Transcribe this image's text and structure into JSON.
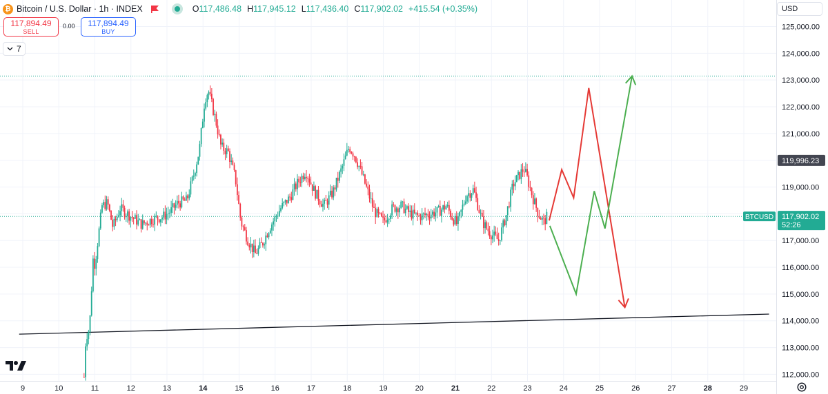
{
  "header": {
    "symbol_title": "Bitcoin / U.S. Dollar · 1h · INDEX",
    "ohlc": [
      {
        "label": "O",
        "value": "117,486.48"
      },
      {
        "label": "H",
        "value": "117,945.12"
      },
      {
        "label": "L",
        "value": "117,436.40"
      },
      {
        "label": "C",
        "value": "117,902.02"
      }
    ],
    "change": "+415.54 (+0.35%)"
  },
  "trading": {
    "sell_price": "117,894.49",
    "sell_label": "SELL",
    "spread": "0.00",
    "buy_price": "117,894.49",
    "buy_label": "BUY"
  },
  "indicator": {
    "label": "7"
  },
  "currency_selector": {
    "value": "USD"
  },
  "icons": [
    "bitcoin-icon",
    "flag-icon",
    "market-status-icon",
    "chevron-icon",
    "tradingview-logo",
    "settings-icon"
  ],
  "colors": {
    "up": "#22ab94",
    "down": "#f23645",
    "arrow_up": "#4caf50",
    "arrow_down": "#e53935",
    "accent": "#2962ff"
  },
  "price_axis": {
    "ticks": [
      "125,000.00",
      "124,000.00",
      "123,000.00",
      "122,000.00",
      "121,000.00",
      "120,000.00",
      "119,000.00",
      "118,000.00",
      "117,000.00",
      "116,000.00",
      "115,000.00",
      "114,000.00",
      "113,000.00",
      "112,000.00"
    ],
    "crosshair_price": "119,996.23",
    "last_symbol": "BTCUSD",
    "last_price": "117,902.02",
    "countdown": "52:26"
  },
  "chart_data": {
    "type": "candlestick",
    "timeframe": "1h",
    "x_ticks": [
      "9",
      "10",
      "11",
      "12",
      "13",
      "14",
      "15",
      "16",
      "17",
      "18",
      "19",
      "20",
      "21",
      "22",
      "23",
      "24",
      "25",
      "26",
      "27",
      "28",
      "29"
    ],
    "ylim": [
      111700,
      125400
    ],
    "dotted_levels": [
      123150,
      117900
    ],
    "support_line": {
      "from": {
        "x": 8.9,
        "y": 113500
      },
      "to": {
        "x": 29.7,
        "y": 114250
      }
    },
    "anchors": [
      {
        "t": 10.7,
        "p": 111900
      },
      {
        "t": 10.75,
        "p": 113400
      },
      {
        "t": 10.85,
        "p": 113700
      },
      {
        "t": 10.95,
        "p": 116300
      },
      {
        "t": 11.0,
        "p": 116100
      },
      {
        "t": 11.1,
        "p": 117200
      },
      {
        "t": 11.2,
        "p": 118300
      },
      {
        "t": 11.35,
        "p": 118400
      },
      {
        "t": 11.5,
        "p": 117500
      },
      {
        "t": 11.7,
        "p": 118200
      },
      {
        "t": 12.0,
        "p": 117900
      },
      {
        "t": 12.3,
        "p": 117600
      },
      {
        "t": 12.6,
        "p": 117800
      },
      {
        "t": 12.9,
        "p": 117900
      },
      {
        "t": 13.1,
        "p": 118100
      },
      {
        "t": 13.3,
        "p": 118400
      },
      {
        "t": 13.55,
        "p": 118500
      },
      {
        "t": 13.75,
        "p": 119500
      },
      {
        "t": 13.9,
        "p": 120400
      },
      {
        "t": 14.05,
        "p": 122300
      },
      {
        "t": 14.15,
        "p": 122600
      },
      {
        "t": 14.35,
        "p": 121500
      },
      {
        "t": 14.5,
        "p": 120500
      },
      {
        "t": 14.7,
        "p": 120300
      },
      {
        "t": 14.9,
        "p": 119300
      },
      {
        "t": 15.05,
        "p": 117700
      },
      {
        "t": 15.25,
        "p": 117000
      },
      {
        "t": 15.45,
        "p": 116500
      },
      {
        "t": 15.65,
        "p": 116900
      },
      {
        "t": 15.85,
        "p": 117500
      },
      {
        "t": 16.15,
        "p": 118200
      },
      {
        "t": 16.4,
        "p": 118600
      },
      {
        "t": 16.6,
        "p": 119100
      },
      {
        "t": 16.85,
        "p": 119600
      },
      {
        "t": 17.1,
        "p": 118800
      },
      {
        "t": 17.35,
        "p": 118300
      },
      {
        "t": 17.6,
        "p": 118800
      },
      {
        "t": 17.85,
        "p": 119700
      },
      {
        "t": 18.05,
        "p": 120500
      },
      {
        "t": 18.2,
        "p": 120200
      },
      {
        "t": 18.35,
        "p": 119700
      },
      {
        "t": 18.55,
        "p": 118900
      },
      {
        "t": 18.75,
        "p": 118100
      },
      {
        "t": 19.0,
        "p": 117700
      },
      {
        "t": 19.25,
        "p": 118200
      },
      {
        "t": 19.5,
        "p": 118300
      },
      {
        "t": 19.75,
        "p": 118000
      },
      {
        "t": 20.0,
        "p": 117900
      },
      {
        "t": 20.3,
        "p": 118000
      },
      {
        "t": 20.55,
        "p": 118100
      },
      {
        "t": 20.75,
        "p": 118300
      },
      {
        "t": 20.9,
        "p": 117900
      },
      {
        "t": 21.05,
        "p": 117600
      },
      {
        "t": 21.3,
        "p": 118700
      },
      {
        "t": 21.5,
        "p": 118900
      },
      {
        "t": 21.75,
        "p": 117700
      },
      {
        "t": 21.95,
        "p": 117300
      },
      {
        "t": 22.2,
        "p": 117000
      },
      {
        "t": 22.4,
        "p": 117900
      },
      {
        "t": 22.6,
        "p": 119100
      },
      {
        "t": 22.75,
        "p": 119400
      },
      {
        "t": 22.9,
        "p": 119700
      },
      {
        "t": 23.0,
        "p": 119300
      },
      {
        "t": 23.15,
        "p": 118600
      },
      {
        "t": 23.3,
        "p": 118000
      },
      {
        "t": 23.45,
        "p": 117700
      },
      {
        "t": 23.55,
        "p": 117900
      }
    ],
    "projection_down_path": [
      {
        "x": 23.6,
        "y": 117750
      },
      {
        "x": 23.95,
        "y": 119650
      },
      {
        "x": 24.28,
        "y": 118600
      },
      {
        "x": 24.7,
        "y": 122700
      },
      {
        "x": 25.7,
        "y": 114500
      }
    ],
    "projection_up_path": [
      {
        "x": 23.62,
        "y": 117550
      },
      {
        "x": 24.35,
        "y": 115000
      },
      {
        "x": 24.85,
        "y": 118850
      },
      {
        "x": 25.15,
        "y": 117450
      },
      {
        "x": 25.9,
        "y": 123150
      }
    ]
  }
}
